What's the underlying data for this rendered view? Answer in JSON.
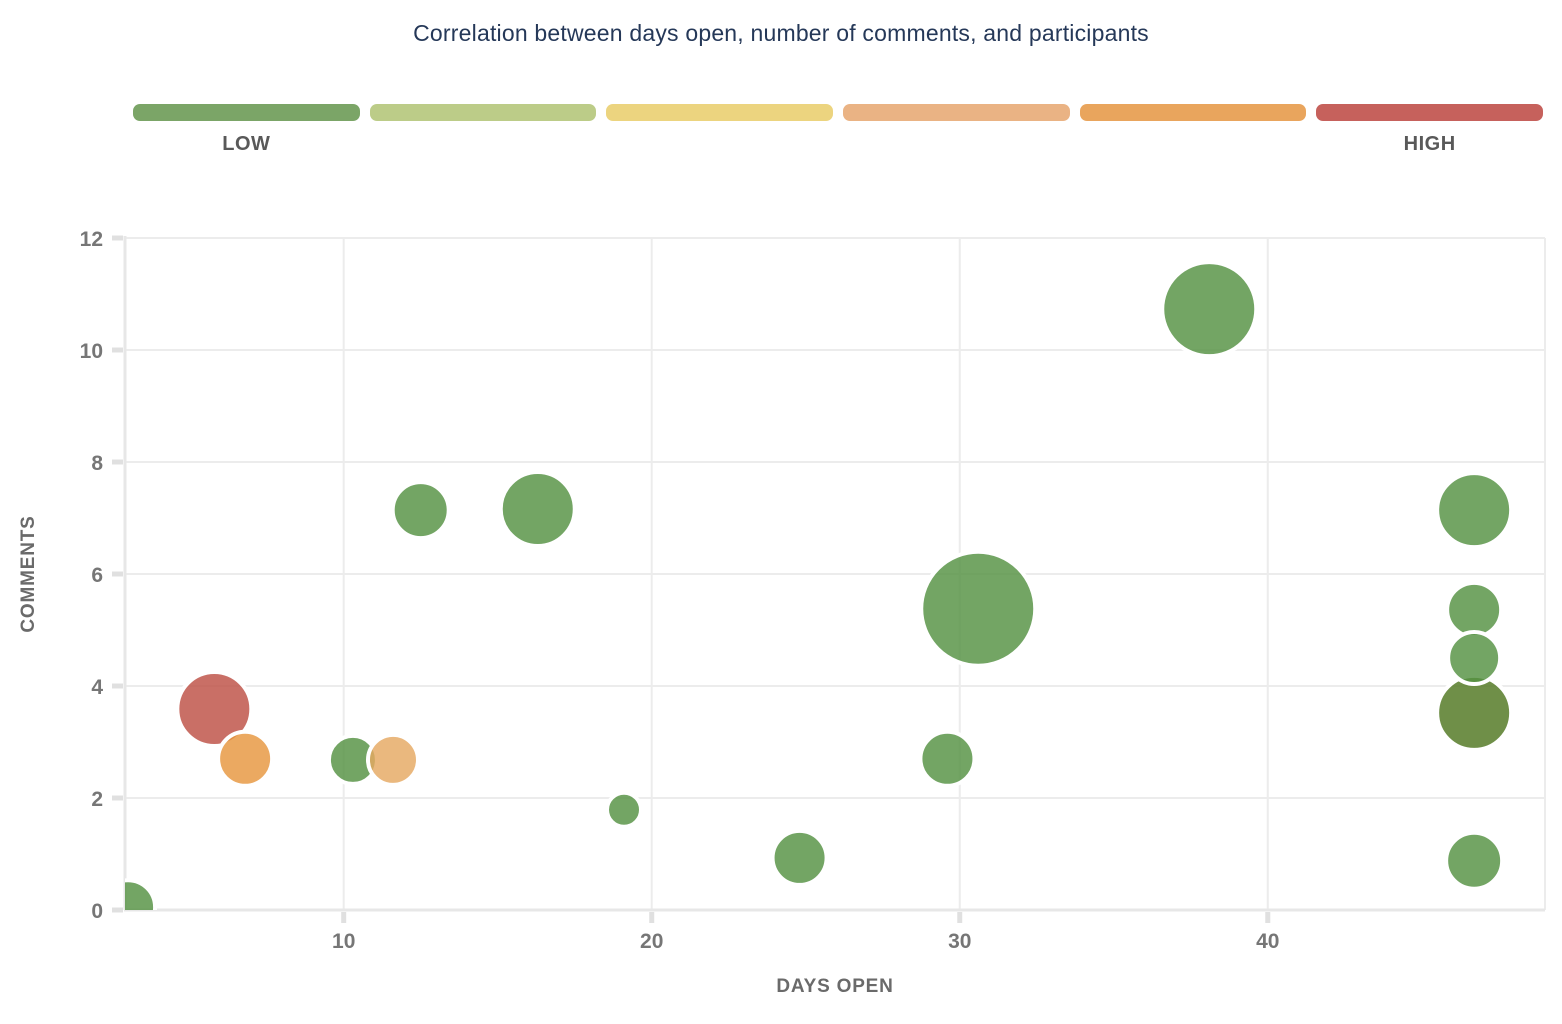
{
  "title": "Correlation between days open, number of comments, and participants",
  "legend": {
    "low_label": "LOW",
    "high_label": "HIGH",
    "colors": [
      "#7ba567",
      "#bccc88",
      "#ecd47f",
      "#eab384",
      "#e9a55d",
      "#c6615c"
    ]
  },
  "chart_data": {
    "type": "scatter",
    "title": "Correlation between days open, number of comments, and participants",
    "xlabel": "DAYS OPEN",
    "ylabel": "COMMENTS",
    "xlim": [
      2.9,
      49.0
    ],
    "ylim": [
      0,
      12
    ],
    "xticks": [
      10,
      20,
      30,
      40
    ],
    "yticks": [
      0,
      2,
      4,
      6,
      8,
      10,
      12
    ],
    "grid": true,
    "legend_position": "top",
    "color_scale": {
      "low": "LOW",
      "high": "HIGH"
    },
    "points": [
      {
        "days_open": 3.0,
        "comments": 0.05,
        "r": 27,
        "color": "green"
      },
      {
        "days_open": 5.8,
        "comments": 3.59,
        "r": 37,
        "color": "red"
      },
      {
        "days_open": 6.8,
        "comments": 2.7,
        "r": 27,
        "color": "orange"
      },
      {
        "days_open": 10.3,
        "comments": 2.68,
        "r": 24,
        "color": "green"
      },
      {
        "days_open": 11.6,
        "comments": 2.68,
        "r": 25,
        "color": "tan"
      },
      {
        "days_open": 12.5,
        "comments": 7.14,
        "r": 28,
        "color": "green"
      },
      {
        "days_open": 16.3,
        "comments": 7.16,
        "r": 37,
        "color": "green"
      },
      {
        "days_open": 19.1,
        "comments": 1.79,
        "r": 17,
        "color": "green"
      },
      {
        "days_open": 24.8,
        "comments": 0.93,
        "r": 27,
        "color": "green"
      },
      {
        "days_open": 29.6,
        "comments": 2.7,
        "r": 27,
        "color": "green"
      },
      {
        "days_open": 30.6,
        "comments": 5.38,
        "r": 57,
        "color": "green"
      },
      {
        "days_open": 38.1,
        "comments": 10.73,
        "r": 47,
        "color": "green"
      },
      {
        "days_open": 46.7,
        "comments": 7.14,
        "r": 37,
        "color": "green"
      },
      {
        "days_open": 46.7,
        "comments": 5.36,
        "r": 27,
        "color": "green"
      },
      {
        "days_open": 46.7,
        "comments": 3.52,
        "r": 37,
        "color": "olive"
      },
      {
        "days_open": 46.7,
        "comments": 4.5,
        "r": 26,
        "color": "green"
      },
      {
        "days_open": 46.7,
        "comments": 0.88,
        "r": 28,
        "color": "green"
      }
    ]
  },
  "colors": {
    "bubble": {
      "green": "#549142",
      "olive": "#4f7620",
      "red": "#bd4f44",
      "orange": "#e7963e",
      "tan": "#e5a862"
    },
    "title_text": "#253858",
    "grid_line": "#ececec",
    "axis_line": "#e7e7e7",
    "tick_mark": "#e0e0e0",
    "tick_label": "#767676",
    "axis_label": "#6a6a6a"
  }
}
